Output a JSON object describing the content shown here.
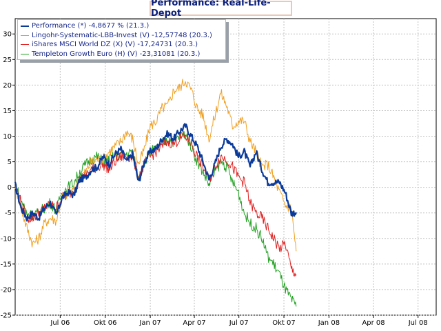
{
  "chart_data": {
    "type": "line",
    "title": "Performance: Real-Life-Depot",
    "xlabel": "",
    "ylabel": "",
    "ylim": [
      -25,
      33
    ],
    "yticks": [
      -25,
      -20,
      -15,
      -10,
      -5,
      0,
      5,
      10,
      15,
      20,
      25,
      30
    ],
    "xticks": [
      "Jul 06",
      "Okt 06",
      "Jan 07",
      "Apr 07",
      "Jul 07",
      "Okt 07",
      "Jan 08",
      "Apr 08",
      "Jul 08"
    ],
    "grid": true,
    "legend_position": "top-left",
    "series": [
      {
        "name": "Performance (*) -4,8677 % (21.3.)",
        "color": "#0a3a9a",
        "width": 2.2,
        "values": [
          [
            0,
            0.5
          ],
          [
            12,
            -4
          ],
          [
            24,
            -6
          ],
          [
            36,
            -5
          ],
          [
            48,
            -6
          ],
          [
            60,
            -4
          ],
          [
            72,
            -3
          ],
          [
            84,
            -5.5
          ],
          [
            96,
            -2
          ],
          [
            108,
            -1
          ],
          [
            120,
            -1.5
          ],
          [
            132,
            1.5
          ],
          [
            144,
            2
          ],
          [
            156,
            3.5
          ],
          [
            168,
            4
          ],
          [
            180,
            6
          ],
          [
            192,
            4.5
          ],
          [
            204,
            6.5
          ],
          [
            216,
            7.5
          ],
          [
            228,
            5
          ],
          [
            240,
            6.5
          ],
          [
            252,
            1
          ],
          [
            264,
            5
          ],
          [
            276,
            7
          ],
          [
            288,
            7.5
          ],
          [
            300,
            9.5
          ],
          [
            312,
            10.5
          ],
          [
            324,
            9.5
          ],
          [
            336,
            11
          ],
          [
            348,
            12
          ],
          [
            360,
            10
          ],
          [
            372,
            8
          ],
          [
            384,
            5
          ],
          [
            396,
            1.5
          ],
          [
            408,
            4.5
          ],
          [
            420,
            8
          ],
          [
            432,
            9.5
          ],
          [
            444,
            8.5
          ],
          [
            456,
            6
          ],
          [
            468,
            7
          ],
          [
            480,
            4
          ],
          [
            492,
            7
          ],
          [
            504,
            3.5
          ],
          [
            516,
            1
          ],
          [
            528,
            1
          ],
          [
            540,
            1
          ],
          [
            552,
            -1
          ],
          [
            564,
            -5
          ],
          [
            574,
            -4.9
          ]
        ]
      },
      {
        "name": "Lingohr-Systematic-LBB-Invest (V) -12,57748 (20.3.)",
        "color": "#f0a020",
        "width": 1,
        "values": [
          [
            0,
            0.5
          ],
          [
            12,
            -4
          ],
          [
            24,
            -8
          ],
          [
            36,
            -11
          ],
          [
            48,
            -10
          ],
          [
            60,
            -7
          ],
          [
            72,
            -6
          ],
          [
            84,
            -6.5
          ],
          [
            96,
            -2
          ],
          [
            108,
            -1
          ],
          [
            120,
            -0.5
          ],
          [
            132,
            2
          ],
          [
            144,
            3
          ],
          [
            156,
            5
          ],
          [
            168,
            5.5
          ],
          [
            180,
            5.5
          ],
          [
            192,
            7
          ],
          [
            204,
            8
          ],
          [
            216,
            9
          ],
          [
            228,
            11
          ],
          [
            240,
            9.5
          ],
          [
            252,
            4.5
          ],
          [
            264,
            7.5
          ],
          [
            276,
            12
          ],
          [
            288,
            13
          ],
          [
            300,
            15.5
          ],
          [
            312,
            16
          ],
          [
            324,
            19
          ],
          [
            336,
            19.5
          ],
          [
            348,
            21
          ],
          [
            360,
            19
          ],
          [
            372,
            15.5
          ],
          [
            384,
            14
          ],
          [
            396,
            9.5
          ],
          [
            408,
            14
          ],
          [
            420,
            18.5
          ],
          [
            432,
            16
          ],
          [
            444,
            12
          ],
          [
            456,
            13
          ],
          [
            468,
            13
          ],
          [
            480,
            9
          ],
          [
            492,
            7
          ],
          [
            504,
            4
          ],
          [
            516,
            4.5
          ],
          [
            528,
            2
          ],
          [
            540,
            -1
          ],
          [
            552,
            -3.5
          ],
          [
            564,
            -4
          ],
          [
            574,
            -12.5
          ]
        ]
      },
      {
        "name": "iShares MSCI World DZ (X) (V) -17,24731 (20.3.)",
        "color": "#e02020",
        "width": 1,
        "values": [
          [
            0,
            0.5
          ],
          [
            12,
            -3
          ],
          [
            24,
            -6
          ],
          [
            36,
            -6
          ],
          [
            48,
            -5
          ],
          [
            60,
            -4
          ],
          [
            72,
            -3.5
          ],
          [
            84,
            -4
          ],
          [
            96,
            -2
          ],
          [
            108,
            -1.5
          ],
          [
            120,
            -0.5
          ],
          [
            132,
            1.5
          ],
          [
            144,
            2.5
          ],
          [
            156,
            3.5
          ],
          [
            168,
            4
          ],
          [
            180,
            4.5
          ],
          [
            192,
            3.5
          ],
          [
            204,
            5
          ],
          [
            216,
            6
          ],
          [
            228,
            6
          ],
          [
            240,
            6
          ],
          [
            252,
            2
          ],
          [
            264,
            4.5
          ],
          [
            276,
            6
          ],
          [
            288,
            7
          ],
          [
            300,
            8
          ],
          [
            312,
            9
          ],
          [
            324,
            8.5
          ],
          [
            336,
            9.5
          ],
          [
            348,
            10
          ],
          [
            360,
            8.5
          ],
          [
            372,
            6
          ],
          [
            384,
            4
          ],
          [
            396,
            1.5
          ],
          [
            408,
            4
          ],
          [
            420,
            6
          ],
          [
            432,
            5.5
          ],
          [
            444,
            4
          ],
          [
            456,
            2
          ],
          [
            468,
            1
          ],
          [
            480,
            -3
          ],
          [
            492,
            -5
          ],
          [
            504,
            -6
          ],
          [
            516,
            -8
          ],
          [
            528,
            -10
          ],
          [
            540,
            -12
          ],
          [
            552,
            -11
          ],
          [
            564,
            -16
          ],
          [
            574,
            -17
          ]
        ]
      },
      {
        "name": "Templeton Growth Euro (H) (V) -23,31081 (20.3.)",
        "color": "#20a020",
        "width": 1,
        "values": [
          [
            0,
            0.5
          ],
          [
            12,
            -2.5
          ],
          [
            24,
            -5
          ],
          [
            36,
            -5.5
          ],
          [
            48,
            -5
          ],
          [
            60,
            -4
          ],
          [
            72,
            -3
          ],
          [
            84,
            -4.5
          ],
          [
            96,
            -1
          ],
          [
            108,
            0
          ],
          [
            120,
            1
          ],
          [
            132,
            3
          ],
          [
            144,
            4.5
          ],
          [
            156,
            5.5
          ],
          [
            168,
            6
          ],
          [
            180,
            5
          ],
          [
            192,
            5.5
          ],
          [
            204,
            6
          ],
          [
            216,
            6.5
          ],
          [
            228,
            6.5
          ],
          [
            240,
            7
          ],
          [
            252,
            1.5
          ],
          [
            264,
            5
          ],
          [
            276,
            7
          ],
          [
            288,
            7.5
          ],
          [
            300,
            8.5
          ],
          [
            312,
            9.5
          ],
          [
            324,
            9
          ],
          [
            336,
            10
          ],
          [
            348,
            10.5
          ],
          [
            360,
            8
          ],
          [
            372,
            5
          ],
          [
            384,
            3
          ],
          [
            396,
            0.5
          ],
          [
            408,
            3
          ],
          [
            420,
            5
          ],
          [
            432,
            4
          ],
          [
            444,
            1
          ],
          [
            456,
            -1
          ],
          [
            468,
            -5
          ],
          [
            480,
            -7
          ],
          [
            492,
            -8
          ],
          [
            504,
            -10
          ],
          [
            516,
            -13.5
          ],
          [
            528,
            -15
          ],
          [
            540,
            -17
          ],
          [
            552,
            -20
          ],
          [
            564,
            -22
          ],
          [
            574,
            -23.3
          ]
        ]
      }
    ]
  }
}
